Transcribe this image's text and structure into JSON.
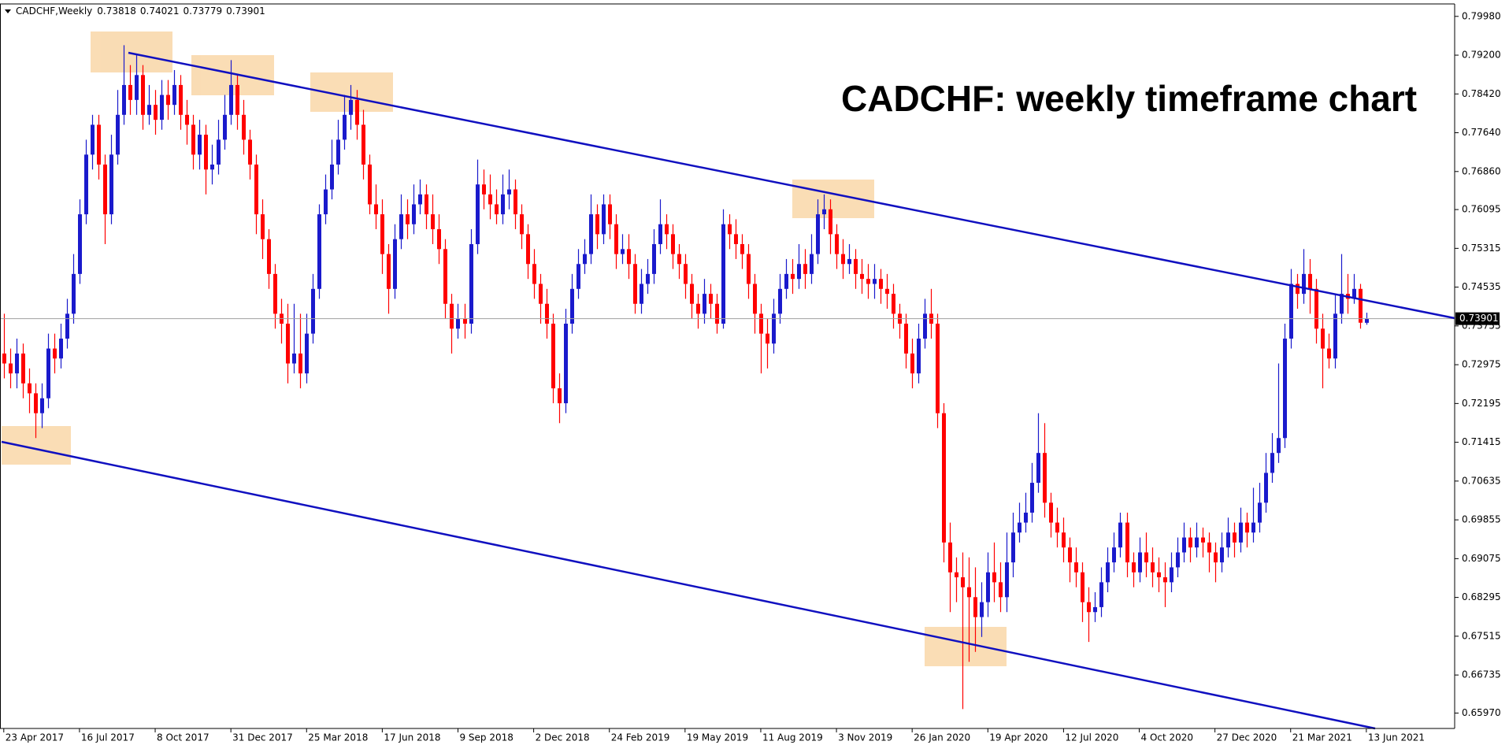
{
  "chart_data": {
    "type": "candlestick",
    "symbol": "CADCHF,Weekly",
    "title": "CADCHF: weekly timeframe chart",
    "up_color": "#1a1acc",
    "down_color": "#ff0000",
    "candles": [
      [
        0.732,
        0.74,
        0.727,
        0.73
      ],
      [
        0.73,
        0.733,
        0.725,
        0.728
      ],
      [
        0.728,
        0.735,
        0.725,
        0.732
      ],
      [
        0.732,
        0.734,
        0.723,
        0.726
      ],
      [
        0.726,
        0.729,
        0.72,
        0.724
      ],
      [
        0.724,
        0.726,
        0.715,
        0.72
      ],
      [
        0.72,
        0.726,
        0.717,
        0.723
      ],
      [
        0.723,
        0.736,
        0.721,
        0.733
      ],
      [
        0.733,
        0.736,
        0.728,
        0.731
      ],
      [
        0.731,
        0.738,
        0.729,
        0.735
      ],
      [
        0.735,
        0.743,
        0.733,
        0.74
      ],
      [
        0.74,
        0.752,
        0.738,
        0.748
      ],
      [
        0.748,
        0.763,
        0.746,
        0.76
      ],
      [
        0.76,
        0.775,
        0.758,
        0.772
      ],
      [
        0.772,
        0.78,
        0.769,
        0.778
      ],
      [
        0.778,
        0.78,
        0.767,
        0.77
      ],
      [
        0.77,
        0.772,
        0.754,
        0.76
      ],
      [
        0.76,
        0.776,
        0.758,
        0.772
      ],
      [
        0.772,
        0.785,
        0.77,
        0.78
      ],
      [
        0.78,
        0.794,
        0.778,
        0.786
      ],
      [
        0.786,
        0.79,
        0.78,
        0.783
      ],
      [
        0.783,
        0.792,
        0.78,
        0.788
      ],
      [
        0.788,
        0.79,
        0.777,
        0.78
      ],
      [
        0.78,
        0.786,
        0.778,
        0.782
      ],
      [
        0.782,
        0.785,
        0.776,
        0.779
      ],
      [
        0.779,
        0.787,
        0.777,
        0.784
      ],
      [
        0.784,
        0.787,
        0.779,
        0.782
      ],
      [
        0.782,
        0.789,
        0.78,
        0.786
      ],
      [
        0.786,
        0.788,
        0.777,
        0.78
      ],
      [
        0.78,
        0.783,
        0.774,
        0.778
      ],
      [
        0.778,
        0.78,
        0.769,
        0.772
      ],
      [
        0.772,
        0.779,
        0.769,
        0.776
      ],
      [
        0.776,
        0.778,
        0.764,
        0.769
      ],
      [
        0.769,
        0.774,
        0.766,
        0.77
      ],
      [
        0.77,
        0.779,
        0.768,
        0.775
      ],
      [
        0.775,
        0.784,
        0.773,
        0.78
      ],
      [
        0.78,
        0.791,
        0.778,
        0.786
      ],
      [
        0.786,
        0.788,
        0.777,
        0.78
      ],
      [
        0.78,
        0.783,
        0.772,
        0.775
      ],
      [
        0.775,
        0.777,
        0.767,
        0.77
      ],
      [
        0.77,
        0.772,
        0.756,
        0.76
      ],
      [
        0.76,
        0.763,
        0.751,
        0.755
      ],
      [
        0.755,
        0.757,
        0.745,
        0.748
      ],
      [
        0.748,
        0.75,
        0.737,
        0.74
      ],
      [
        0.74,
        0.743,
        0.734,
        0.738
      ],
      [
        0.738,
        0.742,
        0.726,
        0.73
      ],
      [
        0.73,
        0.742,
        0.728,
        0.732
      ],
      [
        0.732,
        0.74,
        0.725,
        0.728
      ],
      [
        0.728,
        0.74,
        0.726,
        0.736
      ],
      [
        0.736,
        0.748,
        0.734,
        0.745
      ],
      [
        0.745,
        0.762,
        0.743,
        0.76
      ],
      [
        0.76,
        0.768,
        0.758,
        0.765
      ],
      [
        0.765,
        0.775,
        0.763,
        0.77
      ],
      [
        0.77,
        0.779,
        0.768,
        0.775
      ],
      [
        0.775,
        0.784,
        0.773,
        0.78
      ],
      [
        0.78,
        0.786,
        0.777,
        0.783
      ],
      [
        0.783,
        0.785,
        0.775,
        0.778
      ],
      [
        0.778,
        0.781,
        0.767,
        0.77
      ],
      [
        0.77,
        0.772,
        0.76,
        0.762
      ],
      [
        0.762,
        0.766,
        0.757,
        0.76
      ],
      [
        0.76,
        0.763,
        0.748,
        0.752
      ],
      [
        0.752,
        0.754,
        0.74,
        0.745
      ],
      [
        0.745,
        0.758,
        0.743,
        0.755
      ],
      [
        0.755,
        0.764,
        0.753,
        0.76
      ],
      [
        0.76,
        0.763,
        0.755,
        0.758
      ],
      [
        0.758,
        0.766,
        0.756,
        0.762
      ],
      [
        0.762,
        0.767,
        0.76,
        0.764
      ],
      [
        0.764,
        0.766,
        0.757,
        0.76
      ],
      [
        0.76,
        0.764,
        0.754,
        0.757
      ],
      [
        0.757,
        0.76,
        0.75,
        0.753
      ],
      [
        0.753,
        0.755,
        0.739,
        0.742
      ],
      [
        0.742,
        0.744,
        0.732,
        0.737
      ],
      [
        0.737,
        0.742,
        0.735,
        0.739
      ],
      [
        0.739,
        0.742,
        0.735,
        0.738
      ],
      [
        0.738,
        0.757,
        0.736,
        0.754
      ],
      [
        0.754,
        0.771,
        0.752,
        0.766
      ],
      [
        0.766,
        0.769,
        0.761,
        0.764
      ],
      [
        0.764,
        0.768,
        0.759,
        0.762
      ],
      [
        0.762,
        0.765,
        0.758,
        0.76
      ],
      [
        0.76,
        0.768,
        0.758,
        0.764
      ],
      [
        0.764,
        0.769,
        0.761,
        0.765
      ],
      [
        0.765,
        0.767,
        0.757,
        0.76
      ],
      [
        0.76,
        0.762,
        0.753,
        0.756
      ],
      [
        0.756,
        0.758,
        0.747,
        0.75
      ],
      [
        0.75,
        0.753,
        0.743,
        0.746
      ],
      [
        0.746,
        0.748,
        0.738,
        0.742
      ],
      [
        0.742,
        0.745,
        0.735,
        0.738
      ],
      [
        0.738,
        0.74,
        0.722,
        0.725
      ],
      [
        0.725,
        0.728,
        0.718,
        0.722
      ],
      [
        0.722,
        0.741,
        0.72,
        0.738
      ],
      [
        0.738,
        0.748,
        0.736,
        0.745
      ],
      [
        0.745,
        0.753,
        0.743,
        0.75
      ],
      [
        0.75,
        0.755,
        0.748,
        0.752
      ],
      [
        0.752,
        0.764,
        0.75,
        0.76
      ],
      [
        0.76,
        0.762,
        0.753,
        0.756
      ],
      [
        0.756,
        0.764,
        0.754,
        0.762
      ],
      [
        0.762,
        0.764,
        0.755,
        0.758
      ],
      [
        0.758,
        0.76,
        0.749,
        0.752
      ],
      [
        0.752,
        0.756,
        0.75,
        0.753
      ],
      [
        0.753,
        0.756,
        0.747,
        0.75
      ],
      [
        0.75,
        0.752,
        0.74,
        0.742
      ],
      [
        0.742,
        0.749,
        0.74,
        0.746
      ],
      [
        0.746,
        0.751,
        0.744,
        0.748
      ],
      [
        0.748,
        0.757,
        0.746,
        0.754
      ],
      [
        0.754,
        0.763,
        0.752,
        0.758
      ],
      [
        0.758,
        0.76,
        0.753,
        0.756
      ],
      [
        0.756,
        0.758,
        0.749,
        0.752
      ],
      [
        0.752,
        0.754,
        0.747,
        0.75
      ],
      [
        0.75,
        0.752,
        0.743,
        0.746
      ],
      [
        0.746,
        0.748,
        0.739,
        0.742
      ],
      [
        0.742,
        0.744,
        0.737,
        0.74
      ],
      [
        0.74,
        0.747,
        0.738,
        0.744
      ],
      [
        0.744,
        0.746,
        0.739,
        0.742
      ],
      [
        0.742,
        0.744,
        0.736,
        0.738
      ],
      [
        0.738,
        0.761,
        0.737,
        0.758
      ],
      [
        0.758,
        0.76,
        0.753,
        0.756
      ],
      [
        0.756,
        0.759,
        0.751,
        0.754
      ],
      [
        0.754,
        0.756,
        0.749,
        0.752
      ],
      [
        0.752,
        0.754,
        0.743,
        0.746
      ],
      [
        0.746,
        0.748,
        0.736,
        0.74
      ],
      [
        0.74,
        0.742,
        0.728,
        0.736
      ],
      [
        0.736,
        0.739,
        0.729,
        0.734
      ],
      [
        0.734,
        0.743,
        0.732,
        0.74
      ],
      [
        0.74,
        0.748,
        0.738,
        0.745
      ],
      [
        0.745,
        0.751,
        0.743,
        0.748
      ],
      [
        0.748,
        0.751,
        0.744,
        0.747
      ],
      [
        0.747,
        0.754,
        0.745,
        0.75
      ],
      [
        0.75,
        0.753,
        0.745,
        0.748
      ],
      [
        0.748,
        0.756,
        0.746,
        0.752
      ],
      [
        0.752,
        0.763,
        0.75,
        0.76
      ],
      [
        0.76,
        0.764,
        0.757,
        0.761
      ],
      [
        0.761,
        0.763,
        0.752,
        0.756
      ],
      [
        0.756,
        0.758,
        0.749,
        0.752
      ],
      [
        0.752,
        0.755,
        0.747,
        0.75
      ],
      [
        0.75,
        0.754,
        0.748,
        0.751
      ],
      [
        0.751,
        0.753,
        0.745,
        0.748
      ],
      [
        0.748,
        0.751,
        0.744,
        0.747
      ],
      [
        0.747,
        0.75,
        0.743,
        0.746
      ],
      [
        0.746,
        0.75,
        0.743,
        0.747
      ],
      [
        0.747,
        0.749,
        0.742,
        0.745
      ],
      [
        0.745,
        0.748,
        0.741,
        0.744
      ],
      [
        0.744,
        0.746,
        0.737,
        0.74
      ],
      [
        0.74,
        0.742,
        0.735,
        0.738
      ],
      [
        0.738,
        0.74,
        0.729,
        0.732
      ],
      [
        0.732,
        0.735,
        0.725,
        0.728
      ],
      [
        0.728,
        0.738,
        0.726,
        0.735
      ],
      [
        0.735,
        0.743,
        0.733,
        0.74
      ],
      [
        0.74,
        0.745,
        0.735,
        0.738
      ],
      [
        0.738,
        0.74,
        0.717,
        0.72
      ],
      [
        0.72,
        0.722,
        0.69,
        0.694
      ],
      [
        0.694,
        0.698,
        0.68,
        0.688
      ],
      [
        0.688,
        0.691,
        0.682,
        0.687
      ],
      [
        0.687,
        0.692,
        0.6605,
        0.685
      ],
      [
        0.685,
        0.691,
        0.67,
        0.683
      ],
      [
        0.683,
        0.689,
        0.672,
        0.679
      ],
      [
        0.679,
        0.686,
        0.675,
        0.682
      ],
      [
        0.682,
        0.692,
        0.679,
        0.688
      ],
      [
        0.688,
        0.694,
        0.682,
        0.686
      ],
      [
        0.686,
        0.69,
        0.68,
        0.683
      ],
      [
        0.683,
        0.696,
        0.68,
        0.69
      ],
      [
        0.69,
        0.7,
        0.687,
        0.696
      ],
      [
        0.696,
        0.702,
        0.694,
        0.698
      ],
      [
        0.698,
        0.704,
        0.696,
        0.7
      ],
      [
        0.7,
        0.71,
        0.698,
        0.706
      ],
      [
        0.706,
        0.72,
        0.704,
        0.712
      ],
      [
        0.712,
        0.718,
        0.699,
        0.702
      ],
      [
        0.702,
        0.704,
        0.695,
        0.698
      ],
      [
        0.698,
        0.701,
        0.693,
        0.696
      ],
      [
        0.696,
        0.699,
        0.69,
        0.693
      ],
      [
        0.693,
        0.695,
        0.686,
        0.69
      ],
      [
        0.69,
        0.693,
        0.685,
        0.688
      ],
      [
        0.688,
        0.69,
        0.678,
        0.682
      ],
      [
        0.682,
        0.685,
        0.674,
        0.68
      ],
      [
        0.68,
        0.684,
        0.678,
        0.681
      ],
      [
        0.681,
        0.689,
        0.679,
        0.686
      ],
      [
        0.686,
        0.693,
        0.684,
        0.69
      ],
      [
        0.69,
        0.696,
        0.688,
        0.693
      ],
      [
        0.693,
        0.7,
        0.691,
        0.698
      ],
      [
        0.698,
        0.7,
        0.687,
        0.69
      ],
      [
        0.69,
        0.692,
        0.685,
        0.688
      ],
      [
        0.688,
        0.695,
        0.686,
        0.692
      ],
      [
        0.692,
        0.696,
        0.687,
        0.69
      ],
      [
        0.69,
        0.693,
        0.685,
        0.688
      ],
      [
        0.688,
        0.691,
        0.684,
        0.687
      ],
      [
        0.687,
        0.69,
        0.681,
        0.686
      ],
      [
        0.686,
        0.692,
        0.684,
        0.689
      ],
      [
        0.689,
        0.695,
        0.687,
        0.692
      ],
      [
        0.692,
        0.698,
        0.69,
        0.695
      ],
      [
        0.695,
        0.697,
        0.69,
        0.693
      ],
      [
        0.693,
        0.698,
        0.691,
        0.695
      ],
      [
        0.695,
        0.697,
        0.691,
        0.694
      ],
      [
        0.694,
        0.696,
        0.688,
        0.692
      ],
      [
        0.692,
        0.694,
        0.686,
        0.69
      ],
      [
        0.69,
        0.696,
        0.688,
        0.693
      ],
      [
        0.693,
        0.699,
        0.691,
        0.696
      ],
      [
        0.696,
        0.698,
        0.691,
        0.694
      ],
      [
        0.694,
        0.701,
        0.692,
        0.698
      ],
      [
        0.698,
        0.7,
        0.693,
        0.696
      ],
      [
        0.696,
        0.705,
        0.694,
        0.698
      ],
      [
        0.698,
        0.706,
        0.696,
        0.702
      ],
      [
        0.702,
        0.712,
        0.7,
        0.708
      ],
      [
        0.708,
        0.716,
        0.706,
        0.712
      ],
      [
        0.712,
        0.73,
        0.71,
        0.715
      ],
      [
        0.715,
        0.738,
        0.713,
        0.735
      ],
      [
        0.735,
        0.749,
        0.733,
        0.746
      ],
      [
        0.746,
        0.748,
        0.741,
        0.744
      ],
      [
        0.744,
        0.753,
        0.742,
        0.748
      ],
      [
        0.748,
        0.751,
        0.74,
        0.745
      ],
      [
        0.745,
        0.747,
        0.734,
        0.737
      ],
      [
        0.737,
        0.74,
        0.725,
        0.733
      ],
      [
        0.733,
        0.736,
        0.729,
        0.731
      ],
      [
        0.731,
        0.744,
        0.729,
        0.74
      ],
      [
        0.74,
        0.752,
        0.738,
        0.744
      ],
      [
        0.744,
        0.748,
        0.74,
        0.743
      ],
      [
        0.743,
        0.748,
        0.742,
        0.745
      ],
      [
        0.745,
        0.746,
        0.737,
        0.7382
      ],
      [
        0.73818,
        0.74021,
        0.73779,
        0.73901
      ]
    ],
    "xlim": [
      -0.6,
      230
    ],
    "xticks": [
      {
        "value": 0,
        "label": "23 Apr 2017"
      },
      {
        "value": 12,
        "label": "16 Jul 2017"
      },
      {
        "value": 24,
        "label": "8 Oct 2017"
      },
      {
        "value": 36,
        "label": "31 Dec 2017"
      },
      {
        "value": 48,
        "label": "25 Mar 2018"
      },
      {
        "value": 60,
        "label": "17 Jun 2018"
      },
      {
        "value": 72,
        "label": "9 Sep 2018"
      },
      {
        "value": 84,
        "label": "2 Dec 2018"
      },
      {
        "value": 96,
        "label": "24 Feb 2019"
      },
      {
        "value": 108,
        "label": "19 May 2019"
      },
      {
        "value": 120,
        "label": "11 Aug 2019"
      },
      {
        "value": 132,
        "label": "3 Nov 2019"
      },
      {
        "value": 144,
        "label": "26 Jan 2020"
      },
      {
        "value": 156,
        "label": "19 Apr 2020"
      },
      {
        "value": 168,
        "label": "12 Jul 2020"
      },
      {
        "value": 180,
        "label": "4 Oct 2020"
      },
      {
        "value": 192,
        "label": "27 Dec 2020"
      },
      {
        "value": 204,
        "label": "21 Mar 2021"
      },
      {
        "value": 216,
        "label": "13 Jun 2021"
      }
    ],
    "ylim": [
      0.6566,
      0.8023
    ],
    "yticks": [
      {
        "value": 0.7998,
        "label": "0.79980"
      },
      {
        "value": 0.792,
        "label": "0.79200"
      },
      {
        "value": 0.7842,
        "label": "0.78420"
      },
      {
        "value": 0.7764,
        "label": "0.77640"
      },
      {
        "value": 0.7686,
        "label": "0.76860"
      },
      {
        "value": 0.76095,
        "label": "0.76095"
      },
      {
        "value": 0.75315,
        "label": "0.75315"
      },
      {
        "value": 0.74535,
        "label": "0.74535"
      },
      {
        "value": 0.73755,
        "label": "0.73755"
      },
      {
        "value": 0.72975,
        "label": "0.72975"
      },
      {
        "value": 0.72195,
        "label": "0.72195"
      },
      {
        "value": 0.71415,
        "label": "0.71415"
      },
      {
        "value": 0.70635,
        "label": "0.70635"
      },
      {
        "value": 0.69855,
        "label": "0.69855"
      },
      {
        "value": 0.69075,
        "label": "0.69075"
      },
      {
        "value": 0.68295,
        "label": "0.68295"
      },
      {
        "value": 0.67515,
        "label": "0.67515"
      },
      {
        "value": 0.66735,
        "label": "0.66735"
      },
      {
        "value": 0.6597,
        "label": "0.65970"
      }
    ]
  }
}
